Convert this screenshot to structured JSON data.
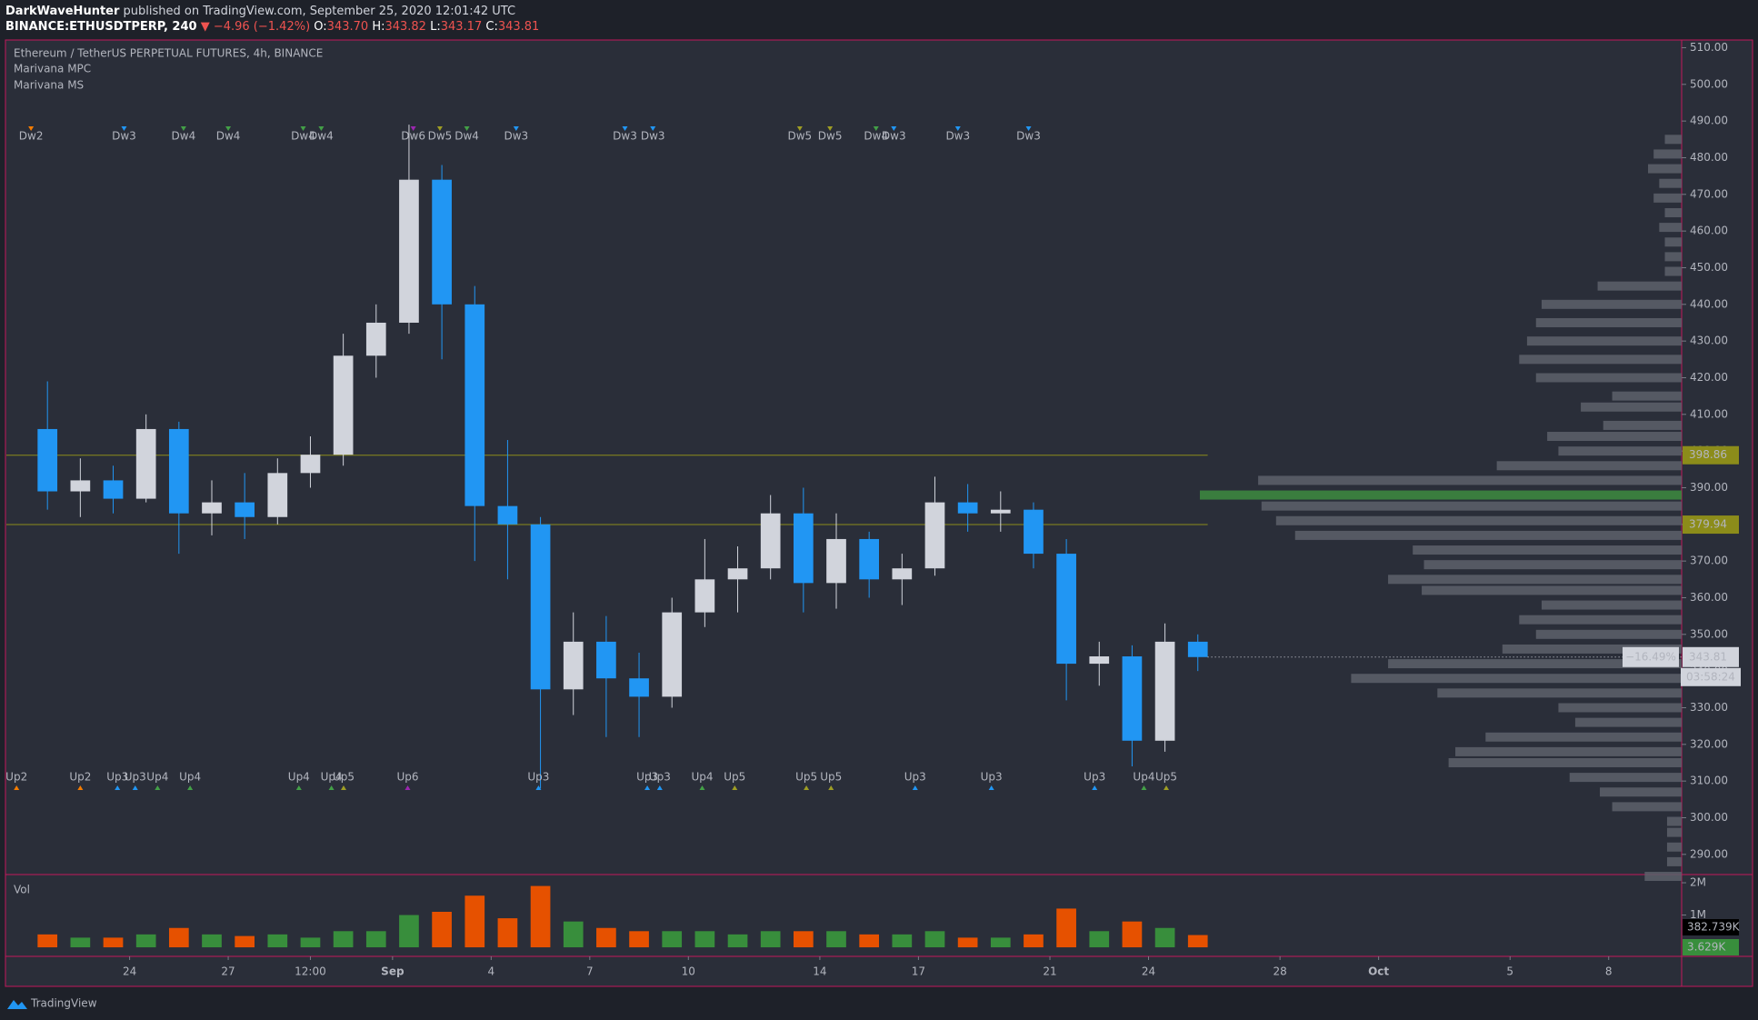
{
  "header": {
    "publisher": "DarkWaveHunter",
    "published": "published on TradingView.com, September 25, 2020 12:01:42 UTC",
    "symbol": "BINANCE:ETHUSDTPERP, 240",
    "change": "▼ −4.96 (−1.42%)",
    "ohlc": [
      {
        "label": "O:",
        "value": "343.70"
      },
      {
        "label": "H:",
        "value": "343.82"
      },
      {
        "label": "L:",
        "value": "343.17"
      },
      {
        "label": "C:",
        "value": "343.81"
      }
    ]
  },
  "chart_data": {
    "type": "candlestick",
    "title": "Ethereum / TetherUS PERPETUAL FUTURES, 4h, BINANCE",
    "indicators": [
      "Marivana MPC",
      "Marivana MS"
    ],
    "x": [
      21,
      22,
      23,
      24,
      25,
      26,
      27,
      28,
      29,
      30,
      31,
      32,
      33,
      34,
      35,
      36,
      37,
      38,
      39,
      40,
      41,
      42,
      43,
      44,
      45,
      46,
      47,
      48,
      49,
      50,
      51,
      52,
      53,
      54,
      55,
      56
    ],
    "open": [
      406,
      389,
      392,
      387,
      406,
      383,
      386,
      382,
      394,
      399,
      426,
      435,
      474,
      440,
      385,
      380,
      335,
      348,
      338,
      333,
      356,
      365,
      368,
      383,
      364,
      376,
      365,
      368,
      386,
      383,
      384,
      372,
      342,
      344,
      321,
      348
    ],
    "high": [
      419,
      398,
      396,
      410,
      408,
      392,
      394,
      398,
      404,
      432,
      440,
      489,
      478,
      445,
      403,
      382,
      356,
      355,
      345,
      360,
      376,
      374,
      388,
      390,
      383,
      378,
      372,
      393,
      391,
      389,
      386,
      376,
      348,
      347,
      353,
      350
    ],
    "low": [
      384,
      382,
      383,
      386,
      372,
      377,
      376,
      380,
      390,
      396,
      420,
      432,
      425,
      370,
      365,
      308,
      328,
      322,
      322,
      330,
      352,
      356,
      365,
      356,
      357,
      360,
      358,
      366,
      378,
      378,
      368,
      332,
      336,
      314,
      318,
      340
    ],
    "close": [
      389,
      392,
      387,
      406,
      383,
      386,
      382,
      394,
      399,
      426,
      435,
      474,
      440,
      385,
      380,
      335,
      348,
      338,
      333,
      356,
      365,
      368,
      383,
      364,
      376,
      365,
      368,
      386,
      383,
      384,
      372,
      342,
      344,
      321,
      348,
      343.81
    ],
    "up_color": "#d1d4dc",
    "down_color": "#2196f3",
    "xlim": [
      20.25,
      71.22
    ],
    "xticks": [
      24,
      27,
      {
        "value": 29.5,
        "label": "12:00"
      },
      {
        "value": 32,
        "label": "Sep"
      },
      {
        "value": 35,
        "label": "4"
      },
      {
        "value": 38,
        "label": "7"
      },
      {
        "value": 41,
        "label": "10"
      },
      {
        "value": 45,
        "label": "14"
      },
      {
        "value": 48,
        "label": "17"
      },
      {
        "value": 52,
        "label": "21"
      },
      {
        "value": 55,
        "label": "24"
      },
      {
        "value": 59,
        "label": "28"
      },
      {
        "value": 62,
        "label": "Oct"
      },
      {
        "value": 66,
        "label": "5"
      },
      {
        "value": 69,
        "label": "8"
      }
    ],
    "ylim": [
      284.5,
      512.1
    ],
    "yticks": [
      {
        "value": 290,
        "label": "290.00"
      },
      {
        "value": 300,
        "label": "300.00"
      },
      {
        "value": 310,
        "label": "310.00"
      },
      {
        "value": 320,
        "label": "320.00"
      },
      {
        "value": 330,
        "label": "330.00"
      },
      {
        "value": 340,
        "label": "340.00"
      },
      {
        "value": 350,
        "label": "350.00"
      },
      {
        "value": 360,
        "label": "360.00"
      },
      {
        "value": 370,
        "label": "370.00"
      },
      {
        "value": 380,
        "label": "380.00"
      },
      {
        "value": 390,
        "label": "390.00"
      },
      {
        "value": 400,
        "label": "400.00"
      },
      {
        "value": 410,
        "label": "410.00"
      },
      {
        "value": 420,
        "label": "420.00"
      },
      {
        "value": 430,
        "label": "430.00"
      },
      {
        "value": 440,
        "label": "440.00"
      },
      {
        "value": 450,
        "label": "450.00"
      },
      {
        "value": 460,
        "label": "460.00"
      },
      {
        "value": 470,
        "label": "470.00"
      },
      {
        "value": 480,
        "label": "480.00"
      },
      {
        "value": 490,
        "label": "490.00"
      },
      {
        "value": 500,
        "label": "500.00"
      },
      {
        "value": 510,
        "label": "510.00"
      }
    ],
    "levels": [
      398.86,
      379.94
    ],
    "level_color": "#8c8c1a",
    "last_change": "−16.49%",
    "countdown": "03:58:24",
    "volume": {
      "title": "Vol",
      "values": [
        400000,
        300000,
        300000,
        400000,
        600000,
        400000,
        350000,
        400000,
        300000,
        500000,
        500000,
        1000000,
        1100000,
        1600000,
        900000,
        1900000,
        800000,
        600000,
        500000,
        500000,
        500000,
        400000,
        500000,
        500000,
        500000,
        400000,
        400000,
        500000,
        300000,
        300000,
        400000,
        1200000,
        500000,
        800000,
        600000,
        380000
      ],
      "ylim": [
        -280000,
        2254000
      ],
      "yticks": [
        {
          "value": 1000000,
          "label": "1M"
        },
        {
          "value": 2000000,
          "label": "2M"
        }
      ],
      "up_color": "#388e3c",
      "down_color": "#e65100",
      "last": [
        {
          "value": 382739,
          "label": "382.739K"
        },
        {
          "value": 3629,
          "label": "3.629K"
        }
      ]
    },
    "volume_profile": {
      "prices": [
        485,
        481,
        477,
        473,
        469,
        465,
        461,
        457,
        453,
        449,
        445,
        440,
        435,
        430,
        425,
        420,
        415,
        412,
        407,
        404,
        400,
        396,
        392,
        388,
        385,
        381,
        377,
        373,
        369,
        365,
        362,
        358,
        354,
        350,
        346,
        342,
        338,
        334,
        330,
        326,
        322,
        318,
        315,
        311,
        307,
        303,
        299,
        296,
        292,
        288,
        284
      ],
      "values": [
        15,
        25,
        30,
        20,
        25,
        15,
        20,
        15,
        15,
        15,
        75,
        125,
        130,
        138,
        145,
        130,
        62,
        90,
        70,
        120,
        110,
        165,
        378,
        430,
        375,
        362,
        345,
        240,
        230,
        262,
        232,
        125,
        145,
        130,
        160,
        262,
        295,
        218,
        110,
        95,
        175,
        202,
        208,
        100,
        73,
        62,
        13,
        13,
        13,
        13,
        33
      ],
      "color": "#5d606b",
      "poc_color": "#3d8b40"
    },
    "signals": [
      {
        "text": "Dw2",
        "x": 21.0,
        "row": "top",
        "color": "#f57c00"
      },
      {
        "text": "Dw3",
        "x": 23.83,
        "row": "top",
        "color": "#2196f3"
      },
      {
        "text": "Dw4",
        "x": 25.64,
        "row": "top",
        "color": "#43a047"
      },
      {
        "text": "Dw4",
        "x": 27.0,
        "row": "top",
        "color": "#43a047"
      },
      {
        "text": "Dw4",
        "x": 29.28,
        "row": "top",
        "color": "#43a047"
      },
      {
        "text": "Dw4",
        "x": 29.83,
        "row": "top",
        "color": "#43a047"
      },
      {
        "text": "Dw6",
        "x": 32.63,
        "row": "top",
        "color": "#9c27b0"
      },
      {
        "text": "Dw5",
        "x": 33.44,
        "row": "top",
        "color": "#9e9d24"
      },
      {
        "text": "Dw4",
        "x": 34.26,
        "row": "top",
        "color": "#43a047"
      },
      {
        "text": "Dw3",
        "x": 35.76,
        "row": "top",
        "color": "#2196f3"
      },
      {
        "text": "Dw3",
        "x": 39.07,
        "row": "top",
        "color": "#2196f3"
      },
      {
        "text": "Dw3",
        "x": 39.92,
        "row": "top",
        "color": "#2196f3"
      },
      {
        "text": "Dw5",
        "x": 44.39,
        "row": "top",
        "color": "#9e9d24"
      },
      {
        "text": "Dw5",
        "x": 45.31,
        "row": "top",
        "color": "#9e9d24"
      },
      {
        "text": "Dw4",
        "x": 46.71,
        "row": "top",
        "color": "#43a047"
      },
      {
        "text": "Dw3",
        "x": 47.25,
        "row": "top",
        "color": "#2196f3"
      },
      {
        "text": "Dw3",
        "x": 49.2,
        "row": "top",
        "color": "#2196f3"
      },
      {
        "text": "Dw3",
        "x": 51.35,
        "row": "top",
        "color": "#2196f3"
      },
      {
        "text": "Up2",
        "x": 20.56,
        "row": "bottom",
        "color": "#f57c00"
      },
      {
        "text": "Up2",
        "x": 22.5,
        "row": "bottom",
        "color": "#f57c00"
      },
      {
        "text": "Up3",
        "x": 23.63,
        "row": "bottom",
        "color": "#2196f3"
      },
      {
        "text": "Up3",
        "x": 24.17,
        "row": "bottom",
        "color": "#2196f3"
      },
      {
        "text": "Up4",
        "x": 24.85,
        "row": "bottom",
        "color": "#43a047"
      },
      {
        "text": "Up4",
        "x": 25.84,
        "row": "bottom",
        "color": "#43a047"
      },
      {
        "text": "Up4",
        "x": 29.15,
        "row": "bottom",
        "color": "#43a047"
      },
      {
        "text": "Up4",
        "x": 30.14,
        "row": "bottom",
        "color": "#43a047"
      },
      {
        "text": "Up5",
        "x": 30.51,
        "row": "bottom",
        "color": "#9e9d24"
      },
      {
        "text": "Up6",
        "x": 32.46,
        "row": "bottom",
        "color": "#9c27b0"
      },
      {
        "text": "Up3",
        "x": 36.44,
        "row": "bottom",
        "color": "#2196f3"
      },
      {
        "text": "Up3",
        "x": 39.75,
        "row": "bottom",
        "color": "#2196f3"
      },
      {
        "text": "Up3",
        "x": 40.13,
        "row": "bottom",
        "color": "#2196f3"
      },
      {
        "text": "Up4",
        "x": 41.42,
        "row": "bottom",
        "color": "#43a047"
      },
      {
        "text": "Up5",
        "x": 42.41,
        "row": "bottom",
        "color": "#9e9d24"
      },
      {
        "text": "Up5",
        "x": 44.59,
        "row": "bottom",
        "color": "#9e9d24"
      },
      {
        "text": "Up5",
        "x": 45.34,
        "row": "bottom",
        "color": "#9e9d24"
      },
      {
        "text": "Up3",
        "x": 47.9,
        "row": "bottom",
        "color": "#2196f3"
      },
      {
        "text": "Up3",
        "x": 50.22,
        "row": "bottom",
        "color": "#2196f3"
      },
      {
        "text": "Up3",
        "x": 53.36,
        "row": "bottom",
        "color": "#2196f3"
      },
      {
        "text": "Up4",
        "x": 54.86,
        "row": "bottom",
        "color": "#43a047"
      },
      {
        "text": "Up5",
        "x": 55.54,
        "row": "bottom",
        "color": "#9e9d24"
      }
    ]
  },
  "footer": {
    "brand": "TradingView"
  }
}
